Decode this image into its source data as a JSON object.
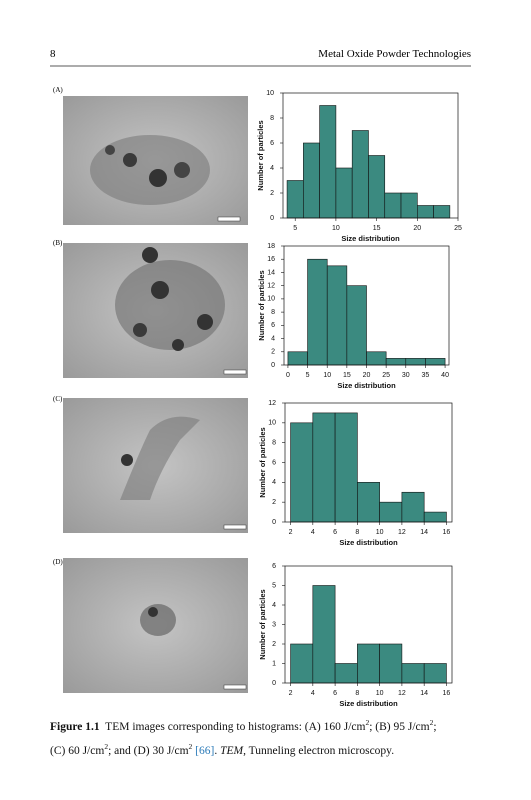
{
  "header": {
    "page_number": "8",
    "running_title": "Metal Oxide Powder Technologies"
  },
  "panels": [
    {
      "label": "(A)"
    },
    {
      "label": "(B)"
    },
    {
      "label": "(C)"
    },
    {
      "label": "(D)"
    }
  ],
  "chart_data": [
    {
      "type": "histogram",
      "color": "#3b8a80",
      "xlabel": "Size distribution",
      "ylabel": "Number of particles",
      "bins": [
        4,
        6,
        8,
        10,
        12,
        14,
        16,
        18,
        20,
        22,
        24
      ],
      "values": [
        3,
        6,
        9,
        4,
        7,
        5,
        2,
        2,
        1,
        1
      ],
      "xlim": [
        3.5,
        25
      ],
      "xticks": [
        5,
        10,
        15,
        20,
        25
      ],
      "ylim": [
        0,
        10
      ],
      "yticks": [
        0,
        2,
        4,
        6,
        8,
        10
      ]
    },
    {
      "type": "histogram",
      "color": "#3b8a80",
      "xlabel": "Size distribution",
      "ylabel": "Number of particles",
      "bins": [
        0,
        5,
        10,
        15,
        20,
        25,
        30,
        35,
        40
      ],
      "values": [
        2,
        16,
        15,
        12,
        2,
        1,
        1,
        1
      ],
      "xlim": [
        -1,
        41
      ],
      "xticks": [
        0,
        5,
        10,
        15,
        20,
        25,
        30,
        35,
        40
      ],
      "ylim": [
        0,
        18
      ],
      "yticks": [
        0,
        2,
        4,
        6,
        8,
        10,
        12,
        14,
        16,
        18
      ]
    },
    {
      "type": "histogram",
      "color": "#3b8a80",
      "xlabel": "Size distribution",
      "ylabel": "Number of particles",
      "bins": [
        2,
        4,
        6,
        8,
        10,
        12,
        14,
        16
      ],
      "values": [
        10,
        11,
        11,
        4,
        2,
        3,
        1
      ],
      "xlim": [
        1.5,
        16.5
      ],
      "xticks": [
        2,
        4,
        6,
        8,
        10,
        12,
        14,
        16
      ],
      "ylim": [
        0,
        12
      ],
      "yticks": [
        0,
        2,
        4,
        6,
        8,
        10,
        12
      ]
    },
    {
      "type": "histogram",
      "color": "#3b8a80",
      "xlabel": "Size distribution",
      "ylabel": "Number of particles",
      "bins": [
        2,
        4,
        6,
        8,
        10,
        12,
        14,
        16
      ],
      "values": [
        2,
        5,
        1,
        2,
        2,
        1,
        1
      ],
      "xlim": [
        1.5,
        16.5
      ],
      "xticks": [
        2,
        4,
        6,
        8,
        10,
        12,
        14,
        16
      ],
      "ylim": [
        0,
        6
      ],
      "yticks": [
        0,
        1,
        2,
        3,
        4,
        5,
        6
      ]
    }
  ],
  "caption": {
    "lines": [
      [
        {
          "text": "Figure 1.1",
          "style": "bold"
        },
        {
          "text": "  TEM images corresponding to histograms: (A) 160 J/cm",
          "style": "normal"
        },
        {
          "text": "2",
          "style": "sup"
        },
        {
          "text": "; (B) 95 J/cm",
          "style": "normal"
        },
        {
          "text": "2",
          "style": "sup"
        },
        {
          "text": ";",
          "style": "normal"
        }
      ],
      [
        {
          "text": "(C) 60 J/cm",
          "style": "normal"
        },
        {
          "text": "2",
          "style": "sup"
        },
        {
          "text": "; and (D) 30 J/cm",
          "style": "normal"
        },
        {
          "text": "2",
          "style": "sup"
        },
        {
          "text": " [66]",
          "style": "link"
        },
        {
          "text": ". ",
          "style": "normal"
        },
        {
          "text": "TEM",
          "style": "italic"
        },
        {
          "text": ", Tunneling electron microscopy.",
          "style": "normal"
        }
      ]
    ]
  }
}
